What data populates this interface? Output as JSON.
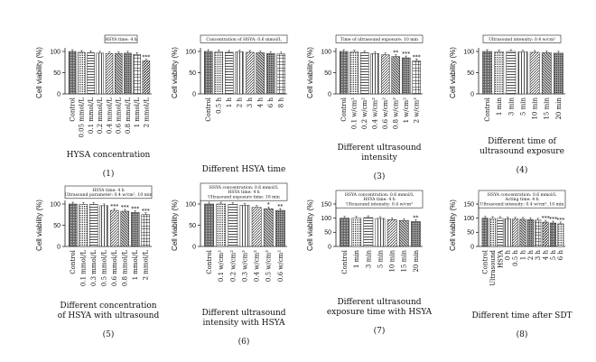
{
  "chart_data": [
    {
      "type": "bar",
      "panel": "(1)",
      "ylabel": "Cell viability (%)",
      "ylim": [
        0,
        100
      ],
      "yticks": [
        0,
        50,
        100
      ],
      "annotation": [
        "HSYA time: 4 h"
      ],
      "categories": [
        "Control",
        "0.05 mmol/L",
        "0.1 mmol/L",
        "0.2 mmol/L",
        "0.4 mmol/L",
        "0.6 mmol/L",
        "0.8 mmol/L",
        "1 mmol/L",
        "2 mmol/L"
      ],
      "values": [
        100,
        98,
        97,
        96,
        95,
        95,
        96,
        93,
        78
      ],
      "significance": [
        "",
        "",
        "",
        "",
        "",
        "",
        "",
        "",
        "***"
      ],
      "caption": [
        "HYSA concentration"
      ]
    },
    {
      "type": "bar",
      "panel": "(2)",
      "ylabel": "Cell viability (%)",
      "ylim": [
        0,
        100
      ],
      "yticks": [
        0,
        50,
        100
      ],
      "annotation": [
        "Concentration of HSYA: 0.6 mmol/L"
      ],
      "categories": [
        "Control",
        "0.5 h",
        "1 h",
        "2 h",
        "3 h",
        "4 h",
        "6 h",
        "8 h"
      ],
      "values": [
        100,
        99,
        98,
        99,
        98,
        97,
        95,
        94
      ],
      "significance": [
        "",
        "",
        "",
        "",
        "",
        "",
        "",
        ""
      ],
      "caption": [
        "Different HSYA time"
      ]
    },
    {
      "type": "bar",
      "panel": "(3)",
      "ylabel": "Cell viability (%)",
      "ylim": [
        0,
        100
      ],
      "yticks": [
        0,
        50,
        100
      ],
      "annotation": [
        "Time of ultrasound exposure: 10 min"
      ],
      "categories": [
        "Control",
        "0.1 w/cm²",
        "0.2 w/cm²",
        "0.4 w/cm²",
        "0.6 w/cm²",
        "0.8 w/cm²",
        "1 w/cm²",
        "2 w/cm²"
      ],
      "values": [
        100,
        99,
        97,
        95,
        92,
        88,
        85,
        78
      ],
      "significance": [
        "",
        "",
        "",
        "",
        "",
        "**",
        "***",
        "***"
      ],
      "caption": [
        "Different ultrasound",
        "intensity"
      ]
    },
    {
      "type": "bar",
      "panel": "(4)",
      "ylabel": "Cell viability (%)",
      "ylim": [
        0,
        100
      ],
      "yticks": [
        0,
        50,
        100
      ],
      "annotation": [
        "Ultrasound intensity: 0.4 w/cm²"
      ],
      "categories": [
        "Control",
        "1 min",
        "3 min",
        "5 min",
        "10 min",
        "15 min",
        "20 min"
      ],
      "values": [
        100,
        99,
        100,
        99,
        98,
        97,
        96
      ],
      "significance": [
        "",
        "",
        "",
        "",
        "",
        "",
        ""
      ],
      "caption": [
        "Different time of",
        "ultrasound exposure"
      ]
    },
    {
      "type": "bar",
      "panel": "(5)",
      "ylabel": "Cell viability (%)",
      "ylim": [
        0,
        100
      ],
      "yticks": [
        0,
        50,
        100
      ],
      "annotation": [
        "HSYA time: 4 h",
        "Ultrasound parameter: 0.4 w/cm², 10 min"
      ],
      "categories": [
        "Control",
        "0.1 mmol/L",
        "0.3 mmol/L",
        "0.5 mmol/L",
        "0.6 mmol/L",
        "0.8 mmol/L",
        "1 mmol/L",
        "2 mmol/L"
      ],
      "values": [
        100,
        99,
        99,
        96,
        85,
        83,
        80,
        75
      ],
      "significance": [
        "",
        "",
        "",
        "",
        "***",
        "***",
        "***",
        "***"
      ],
      "caption": [
        "Different concentration",
        "of HSYA with ultrasound"
      ]
    },
    {
      "type": "bar",
      "panel": "(6)",
      "ylabel": "Cell viability (%)",
      "ylim": [
        0,
        100
      ],
      "yticks": [
        0,
        50,
        100
      ],
      "annotation": [
        "HSYA concentration: 0.6 mmol/L",
        "HSYA time: 4 h",
        "Ultrasound exposure time: 10 min"
      ],
      "categories": [
        "Control",
        "0.1 w/cm²",
        "0.2 w/cm²",
        "0.3 w/cm²",
        "0.4 w/cm²",
        "0.5 w/cm²",
        "0.6 w/cm²"
      ],
      "values": [
        100,
        100,
        99,
        97,
        92,
        89,
        85
      ],
      "significance": [
        "",
        "",
        "",
        "",
        "",
        "*",
        "**"
      ],
      "caption": [
        "Different ultrasound",
        "intensity with HSYA"
      ]
    },
    {
      "type": "bar",
      "panel": "(7)",
      "ylabel": "Cell viability (%)",
      "ylim": [
        0,
        150
      ],
      "yticks": [
        0,
        50,
        100,
        150
      ],
      "annotation": [
        "HSYA concentration: 0.6 mmol/L",
        "HSYA time: 4 h",
        "Ultrasound intensity: 0.4 w/cm²"
      ],
      "categories": [
        "Control",
        "1 min",
        "3 min",
        "5 min",
        "10 min",
        "15 min",
        "20 min"
      ],
      "values": [
        100,
        100,
        102,
        99,
        95,
        92,
        88
      ],
      "significance": [
        "",
        "",
        "",
        "",
        "",
        "",
        "**"
      ],
      "caption": [
        "Different ultrasound",
        "exposure time with HSYA"
      ]
    },
    {
      "type": "bar",
      "panel": "(8)",
      "ylabel": "Cell viability (%)",
      "ylim": [
        0,
        150
      ],
      "yticks": [
        0,
        50,
        100,
        150
      ],
      "annotation": [
        "HSYA concentration: 0.6 mmol/L",
        "Acting time: 4 h",
        "Ultrasound intensity: 0.4 w/cm², 10 min"
      ],
      "categories": [
        "Control",
        "Ultrasound",
        "HSYA",
        "0 h",
        "0.5 h",
        "1 h",
        "2 h",
        "3 h",
        "4 h",
        "5 h",
        "6 h"
      ],
      "values": [
        100,
        99,
        99,
        98,
        97,
        96,
        95,
        93,
        86,
        83,
        80
      ],
      "significance": [
        "",
        "",
        "",
        "",
        "",
        "",
        "",
        "",
        "***",
        "***",
        "***"
      ],
      "caption": [
        "Different time after SDT"
      ]
    }
  ]
}
